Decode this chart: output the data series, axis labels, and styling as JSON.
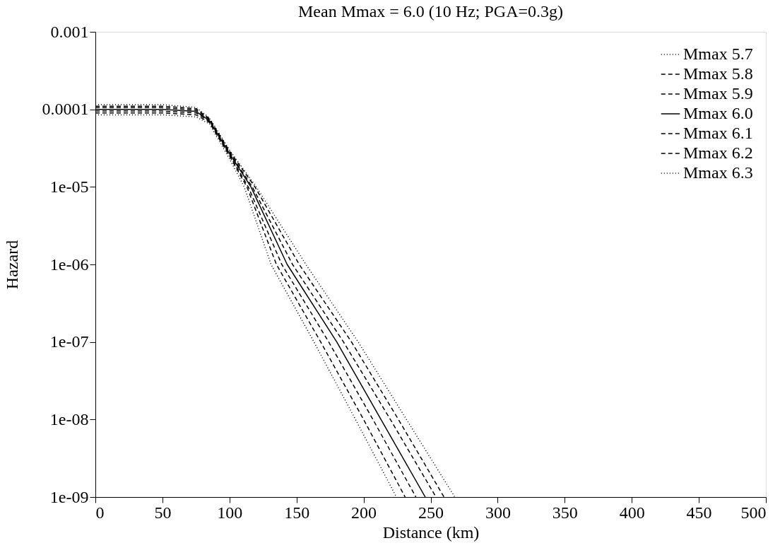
{
  "chart_data": {
    "type": "line",
    "title": "Mean Mmax = 6.0 (10 Hz; PGA=0.3g)",
    "xlabel": "Distance (km)",
    "ylabel": "Hazard",
    "log": "y",
    "grid": false,
    "legend": "top right",
    "marker": "none",
    "xlim": [
      0,
      500
    ],
    "xticks": [
      0,
      50,
      100,
      150,
      200,
      250,
      300,
      350,
      400,
      450,
      500
    ],
    "ylim": [
      1e-09,
      0.001
    ],
    "yticks": [
      0.001,
      0.0001,
      {
        "value": 1e-05,
        "label": "1e-05"
      },
      {
        "value": 1e-06,
        "label": "1e-06"
      },
      {
        "value": 1e-07,
        "label": "1e-07"
      },
      {
        "value": 1e-08,
        "label": "1e-08"
      },
      {
        "value": 1e-09,
        "label": "1e-09"
      }
    ],
    "series": [
      {
        "name": "Mmax 5.7",
        "color": "#000000",
        "line_style": "dotted",
        "x": [
          0,
          50,
          75,
          85,
          100,
          111,
          131,
          163,
          194,
          224.5
        ],
        "values": [
          8.5e-05,
          8.5e-05,
          8e-05,
          6.5e-05,
          2.3e-05,
          1e-05,
          1e-06,
          1e-07,
          1e-08,
          1e-09
        ]
      },
      {
        "name": "Mmax 5.8",
        "color": "#000000",
        "line_style": "dashed",
        "x": [
          0,
          50,
          75,
          85,
          100,
          113,
          135,
          168,
          200,
          231
        ],
        "values": [
          9e-05,
          9e-05,
          8.5e-05,
          6.8e-05,
          2.5e-05,
          1e-05,
          1e-06,
          1e-07,
          1e-08,
          1e-09
        ]
      },
      {
        "name": "Mmax 5.9",
        "color": "#000000",
        "line_style": "dashed",
        "x": [
          0,
          50,
          75,
          85,
          100,
          114,
          139,
          174,
          207,
          239
        ],
        "values": [
          9.5e-05,
          9.5e-05,
          9e-05,
          7e-05,
          2.6e-05,
          1e-05,
          1e-06,
          1e-07,
          1e-08,
          1e-09
        ]
      },
      {
        "name": "Mmax 6.0",
        "color": "#000000",
        "line_style": "solid",
        "x": [
          0,
          50,
          75,
          85,
          100,
          116,
          143,
          180,
          213,
          246
        ],
        "values": [
          0.0001,
          0.0001,
          9.4e-05,
          7.2e-05,
          2.7e-05,
          1e-05,
          1e-06,
          1e-07,
          1e-08,
          1e-09
        ]
      },
      {
        "name": "Mmax 6.1",
        "color": "#000000",
        "line_style": "dashed",
        "x": [
          0,
          50,
          75,
          85,
          100,
          117,
          147,
          185,
          220,
          254
        ],
        "values": [
          0.000105,
          0.000105,
          9.8e-05,
          7.4e-05,
          2.8e-05,
          1e-05,
          1e-06,
          1e-07,
          1e-08,
          1e-09
        ]
      },
      {
        "name": "Mmax 6.2",
        "color": "#000000",
        "line_style": "dashed",
        "x": [
          0,
          50,
          75,
          85,
          100,
          119,
          152,
          191,
          226,
          260
        ],
        "values": [
          0.00011,
          0.00011,
          0.000102,
          7.6e-05,
          2.9e-05,
          1e-05,
          1e-06,
          1e-07,
          1e-08,
          1e-09
        ]
      },
      {
        "name": "Mmax 6.3",
        "color": "#000000",
        "line_style": "dotted",
        "x": [
          0,
          50,
          75,
          85,
          100,
          120,
          157,
          196,
          232,
          268
        ],
        "values": [
          0.000115,
          0.000115,
          0.000106,
          7.8e-05,
          3e-05,
          1e-05,
          1e-06,
          1e-07,
          1e-08,
          1e-09
        ]
      }
    ]
  }
}
